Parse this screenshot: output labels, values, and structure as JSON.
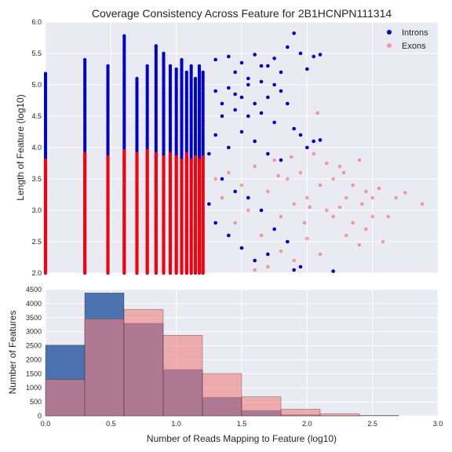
{
  "colors": {
    "introns": "#0000cc",
    "exons": "#ff0000",
    "introns_hist": "#4c72b0",
    "exons_hist": "#f08080",
    "plot_background": "#eaeaf2",
    "grid": "#ffffff"
  },
  "chart_data": [
    {
      "type": "scatter",
      "title": "Coverage Consistency Across Feature for 2B1HCNPN111314",
      "xlabel": "",
      "ylabel": "Length of Feature (log10)",
      "xlim": [
        0.0,
        3.0
      ],
      "ylim": [
        2.0,
        6.0
      ],
      "xticks": [],
      "yticks": [
        "2.0",
        "2.5",
        "3.0",
        "3.5",
        "4.0",
        "4.5",
        "5.0",
        "5.5",
        "6.0"
      ],
      "grid": true,
      "legend_position": "top-right",
      "series": [
        {
          "name": "Introns",
          "color": "#0000cc",
          "discrete_columns": [
            {
              "x": 0.0,
              "ymin": 2.0,
              "ymax": 5.18
            },
            {
              "x": 0.301,
              "ymin": 2.0,
              "ymax": 5.4
            },
            {
              "x": 0.477,
              "ymin": 2.0,
              "ymax": 5.3
            },
            {
              "x": 0.602,
              "ymin": 2.0,
              "ymax": 5.78
            },
            {
              "x": 0.699,
              "ymin": 2.0,
              "ymax": 5.1
            },
            {
              "x": 0.778,
              "ymin": 2.0,
              "ymax": 5.3
            },
            {
              "x": 0.845,
              "ymin": 2.0,
              "ymax": 5.62
            },
            {
              "x": 0.903,
              "ymin": 2.0,
              "ymax": 5.5
            },
            {
              "x": 0.954,
              "ymin": 2.0,
              "ymax": 5.3
            },
            {
              "x": 1.0,
              "ymin": 2.0,
              "ymax": 5.25
            },
            {
              "x": 1.041,
              "ymin": 2.0,
              "ymax": 5.4
            },
            {
              "x": 1.079,
              "ymin": 2.0,
              "ymax": 5.2
            },
            {
              "x": 1.114,
              "ymin": 2.0,
              "ymax": 5.3
            },
            {
              "x": 1.146,
              "ymin": 2.0,
              "ymax": 5.1
            },
            {
              "x": 1.176,
              "ymin": 2.0,
              "ymax": 5.3
            },
            {
              "x": 1.204,
              "ymin": 2.0,
              "ymax": 5.2
            }
          ],
          "points": [
            {
              "x": 1.3,
              "y": 5.4
            },
            {
              "x": 1.4,
              "y": 5.45
            },
            {
              "x": 1.45,
              "y": 5.2
            },
            {
              "x": 1.5,
              "y": 5.35
            },
            {
              "x": 1.55,
              "y": 5.1
            },
            {
              "x": 1.6,
              "y": 5.48
            },
            {
              "x": 1.65,
              "y": 5.05
            },
            {
              "x": 1.7,
              "y": 5.3
            },
            {
              "x": 1.75,
              "y": 5.42
            },
            {
              "x": 1.8,
              "y": 5.2
            },
            {
              "x": 1.85,
              "y": 5.6
            },
            {
              "x": 1.9,
              "y": 5.82
            },
            {
              "x": 1.95,
              "y": 5.5
            },
            {
              "x": 2.0,
              "y": 5.25
            },
            {
              "x": 2.05,
              "y": 5.45
            },
            {
              "x": 2.1,
              "y": 5.48
            },
            {
              "x": 1.3,
              "y": 4.9
            },
            {
              "x": 1.35,
              "y": 4.7
            },
            {
              "x": 1.4,
              "y": 4.95
            },
            {
              "x": 1.45,
              "y": 4.6
            },
            {
              "x": 1.5,
              "y": 4.8
            },
            {
              "x": 1.55,
              "y": 4.5
            },
            {
              "x": 1.6,
              "y": 4.7
            },
            {
              "x": 1.65,
              "y": 4.55
            },
            {
              "x": 1.7,
              "y": 4.8
            },
            {
              "x": 1.75,
              "y": 4.4
            },
            {
              "x": 1.8,
              "y": 4.9
            },
            {
              "x": 1.85,
              "y": 4.7
            },
            {
              "x": 1.9,
              "y": 4.3
            },
            {
              "x": 1.95,
              "y": 4.2
            },
            {
              "x": 2.0,
              "y": 4.0
            },
            {
              "x": 2.05,
              "y": 4.1
            },
            {
              "x": 2.1,
              "y": 4.12
            },
            {
              "x": 1.3,
              "y": 4.2
            },
            {
              "x": 1.4,
              "y": 4.0
            },
            {
              "x": 1.5,
              "y": 4.25
            },
            {
              "x": 1.6,
              "y": 4.1
            },
            {
              "x": 1.7,
              "y": 3.9
            },
            {
              "x": 1.8,
              "y": 3.8
            },
            {
              "x": 1.25,
              "y": 3.9
            },
            {
              "x": 1.35,
              "y": 3.5
            },
            {
              "x": 1.45,
              "y": 3.3
            },
            {
              "x": 1.55,
              "y": 3.2
            },
            {
              "x": 1.65,
              "y": 3.0
            },
            {
              "x": 1.75,
              "y": 2.7
            },
            {
              "x": 1.85,
              "y": 2.5
            },
            {
              "x": 1.95,
              "y": 2.1
            },
            {
              "x": 1.9,
              "y": 2.05
            },
            {
              "x": 2.2,
              "y": 2.03
            },
            {
              "x": 1.6,
              "y": 2.2
            },
            {
              "x": 1.7,
              "y": 2.3
            },
            {
              "x": 1.5,
              "y": 2.4
            },
            {
              "x": 1.4,
              "y": 2.6
            },
            {
              "x": 1.3,
              "y": 2.8
            },
            {
              "x": 1.25,
              "y": 3.1
            },
            {
              "x": 1.35,
              "y": 4.5
            },
            {
              "x": 1.45,
              "y": 4.85
            },
            {
              "x": 1.55,
              "y": 5.0
            },
            {
              "x": 1.65,
              "y": 5.3
            },
            {
              "x": 1.75,
              "y": 5.0
            }
          ]
        },
        {
          "name": "Exons",
          "color": "#ff0000",
          "discrete_columns": [
            {
              "x": 0.0,
              "ymin": 2.0,
              "ymax": 3.8
            },
            {
              "x": 0.301,
              "ymin": 2.0,
              "ymax": 3.9
            },
            {
              "x": 0.477,
              "ymin": 2.0,
              "ymax": 3.85
            },
            {
              "x": 0.602,
              "ymin": 2.0,
              "ymax": 3.95
            },
            {
              "x": 0.699,
              "ymin": 2.0,
              "ymax": 3.9
            },
            {
              "x": 0.778,
              "ymin": 2.0,
              "ymax": 3.95
            },
            {
              "x": 0.845,
              "ymin": 2.0,
              "ymax": 3.9
            },
            {
              "x": 0.903,
              "ymin": 2.0,
              "ymax": 3.85
            },
            {
              "x": 0.954,
              "ymin": 2.0,
              "ymax": 3.9
            },
            {
              "x": 1.0,
              "ymin": 2.0,
              "ymax": 3.85
            },
            {
              "x": 1.041,
              "ymin": 2.0,
              "ymax": 3.8
            },
            {
              "x": 1.079,
              "ymin": 2.0,
              "ymax": 3.9
            },
            {
              "x": 1.114,
              "ymin": 2.0,
              "ymax": 3.8
            },
            {
              "x": 1.146,
              "ymin": 2.0,
              "ymax": 3.85
            },
            {
              "x": 1.176,
              "ymin": 2.0,
              "ymax": 3.8
            },
            {
              "x": 1.204,
              "ymin": 2.0,
              "ymax": 3.85
            }
          ],
          "points": [
            {
              "x": 1.3,
              "y": 3.5
            },
            {
              "x": 1.35,
              "y": 3.2
            },
            {
              "x": 1.4,
              "y": 3.6
            },
            {
              "x": 1.45,
              "y": 2.8
            },
            {
              "x": 1.5,
              "y": 3.4
            },
            {
              "x": 1.55,
              "y": 3.0
            },
            {
              "x": 1.6,
              "y": 3.7
            },
            {
              "x": 1.65,
              "y": 2.6
            },
            {
              "x": 1.7,
              "y": 3.3
            },
            {
              "x": 1.75,
              "y": 3.8
            },
            {
              "x": 1.8,
              "y": 2.9
            },
            {
              "x": 1.85,
              "y": 3.5
            },
            {
              "x": 1.9,
              "y": 3.1
            },
            {
              "x": 1.95,
              "y": 3.6
            },
            {
              "x": 2.0,
              "y": 3.2
            },
            {
              "x": 2.05,
              "y": 3.9
            },
            {
              "x": 2.1,
              "y": 3.4
            },
            {
              "x": 2.15,
              "y": 3.0
            },
            {
              "x": 2.2,
              "y": 3.5
            },
            {
              "x": 2.25,
              "y": 3.7
            },
            {
              "x": 2.3,
              "y": 3.2
            },
            {
              "x": 2.35,
              "y": 3.4
            },
            {
              "x": 2.4,
              "y": 3.8
            },
            {
              "x": 2.45,
              "y": 3.3
            },
            {
              "x": 2.5,
              "y": 3.2
            },
            {
              "x": 2.55,
              "y": 3.35
            },
            {
              "x": 2.58,
              "y": 2.5
            },
            {
              "x": 2.62,
              "y": 2.9
            },
            {
              "x": 2.45,
              "y": 2.7
            },
            {
              "x": 2.4,
              "y": 2.45
            },
            {
              "x": 2.3,
              "y": 2.6
            },
            {
              "x": 2.2,
              "y": 2.9
            },
            {
              "x": 2.1,
              "y": 2.3
            },
            {
              "x": 2.0,
              "y": 2.55
            },
            {
              "x": 1.9,
              "y": 2.2
            },
            {
              "x": 1.8,
              "y": 2.35
            },
            {
              "x": 1.7,
              "y": 2.1
            },
            {
              "x": 1.6,
              "y": 2.05
            },
            {
              "x": 2.08,
              "y": 4.55
            },
            {
              "x": 2.25,
              "y": 3.05
            },
            {
              "x": 2.35,
              "y": 2.8
            },
            {
              "x": 2.28,
              "y": 3.6
            },
            {
              "x": 1.98,
              "y": 2.8
            },
            {
              "x": 1.88,
              "y": 3.85
            },
            {
              "x": 2.15,
              "y": 3.75
            },
            {
              "x": 2.02,
              "y": 3.05
            },
            {
              "x": 1.78,
              "y": 3.55
            },
            {
              "x": 2.42,
              "y": 3.1
            },
            {
              "x": 2.88,
              "y": 3.1
            },
            {
              "x": 2.68,
              "y": 3.2
            },
            {
              "x": 2.75,
              "y": 3.28
            },
            {
              "x": 2.5,
              "y": 2.9
            }
          ]
        }
      ]
    },
    {
      "type": "bar",
      "title": "",
      "xlabel": "Number of Reads Mapping to Feature (log10)",
      "ylabel": "Number of Features",
      "xlim": [
        0.0,
        3.0
      ],
      "ylim": [
        0,
        4500
      ],
      "xticks": [
        "0.0",
        "0.5",
        "1.0",
        "1.5",
        "2.0",
        "2.5",
        "3.0"
      ],
      "yticks": [
        "0",
        "500",
        "1000",
        "1500",
        "2000",
        "2500",
        "3000",
        "3500",
        "4000",
        "4500"
      ],
      "bin_edges": [
        0.0,
        0.3,
        0.6,
        0.9,
        1.2,
        1.5,
        1.8,
        2.1,
        2.4,
        2.7,
        3.0
      ],
      "grid": true,
      "series": [
        {
          "name": "Introns",
          "color": "#4c72b0",
          "values": [
            2520,
            4380,
            3300,
            1650,
            660,
            190,
            40,
            10,
            0,
            0
          ]
        },
        {
          "name": "Exons",
          "color": "#f08080",
          "values": [
            1300,
            3460,
            3790,
            2870,
            1510,
            680,
            240,
            80,
            20,
            0
          ]
        }
      ]
    }
  ]
}
